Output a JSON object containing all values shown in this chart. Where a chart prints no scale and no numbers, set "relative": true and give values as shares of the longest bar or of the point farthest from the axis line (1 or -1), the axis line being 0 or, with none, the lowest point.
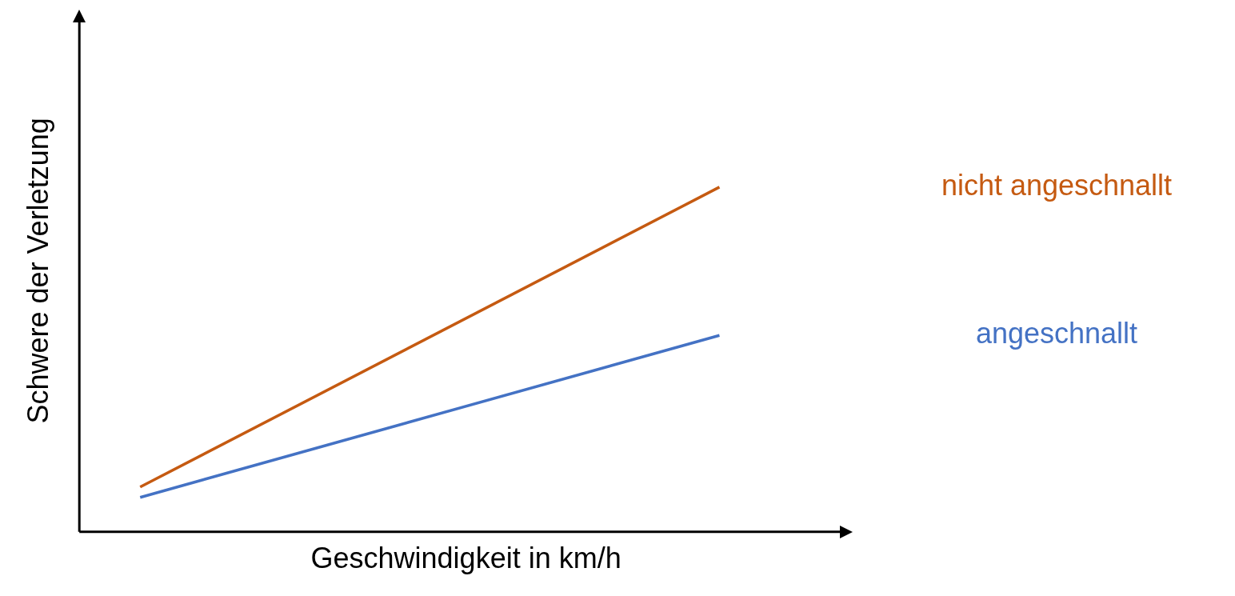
{
  "chart_data": {
    "type": "line",
    "relative": true,
    "xlabel": "Geschwindigkeit in km/h",
    "ylabel": "Schwere der Verletzung",
    "categories": [
      null,
      null
    ],
    "series": [
      {
        "name": "nicht angeschnallt",
        "color": "#c55a11",
        "values": [
          0.13,
          1
        ]
      },
      {
        "name": "angeschnallt",
        "color": "#4472c4",
        "values": [
          0.1,
          0.57
        ]
      }
    ],
    "legend": false,
    "grid": false,
    "marker": "none",
    "line_style": "solid"
  }
}
